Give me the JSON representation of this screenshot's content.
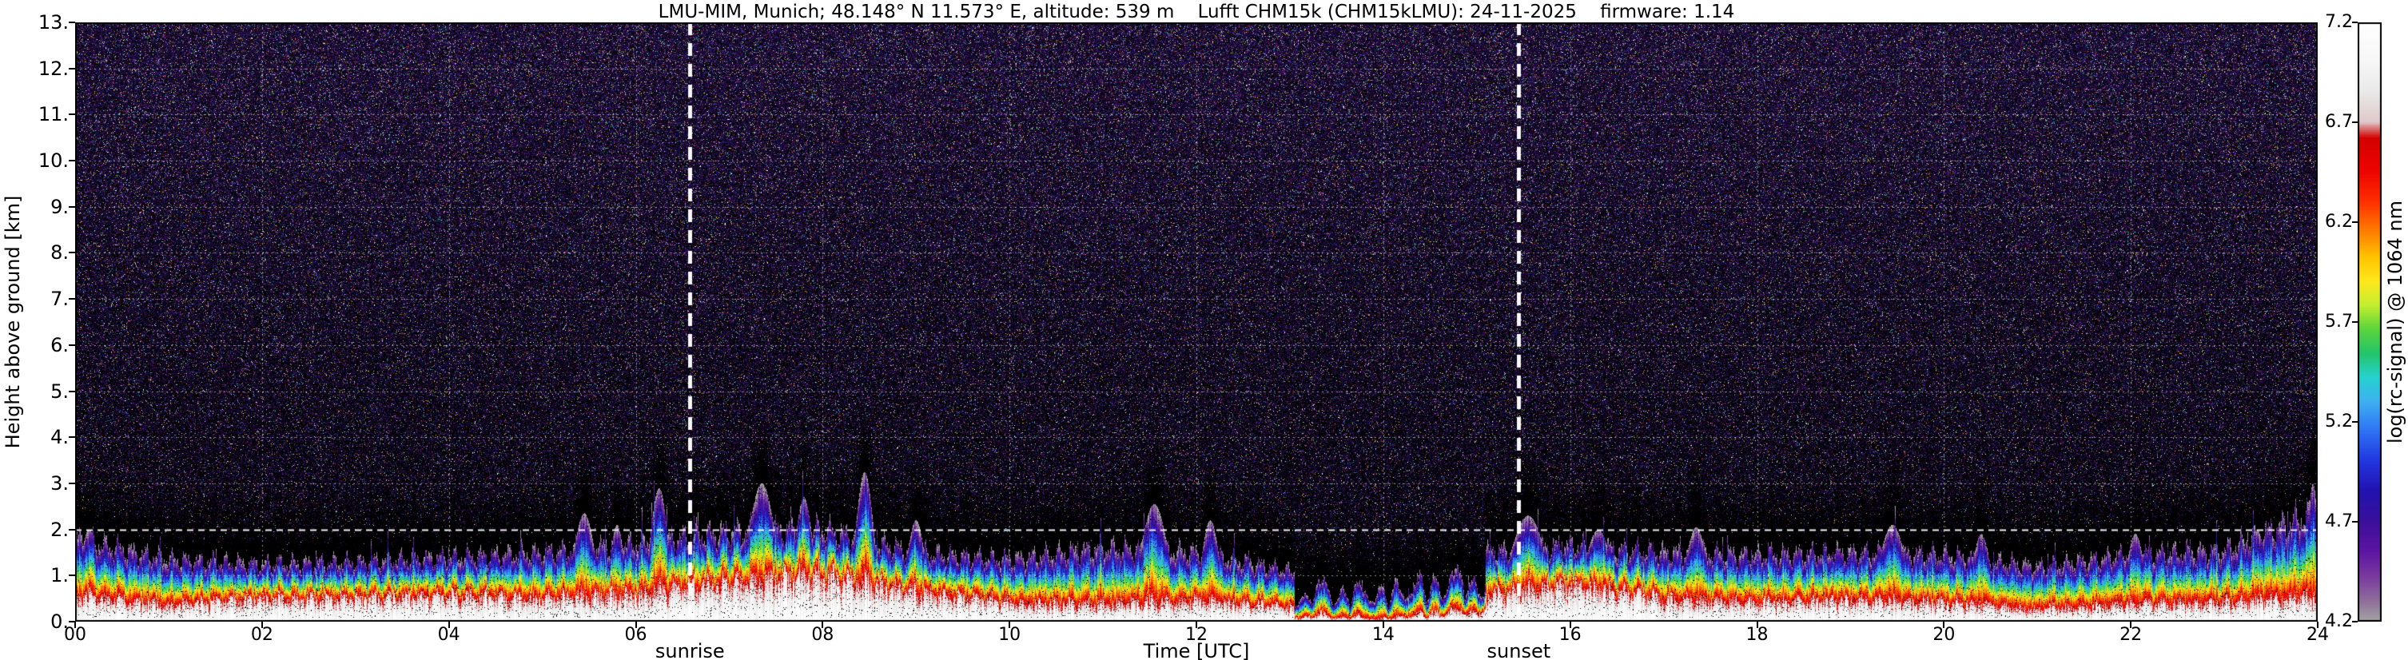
{
  "chart_data": {
    "type": "heatmap",
    "title": "LMU-MIM, Munich; 48.148° N 11.573° E, altitude: 539 m    Lufft CHM15k (CHM15kLMU): 24-11-2025    firmware: 1.14",
    "xlabel": "Time [UTC]",
    "ylabel": "Height above ground [km]",
    "colorbar_label": "log(rc-signal) @ 1064 nm",
    "x_range_hours": [
      0,
      24
    ],
    "y_range_km": [
      0,
      13
    ],
    "value_range": [
      4.2,
      7.2
    ],
    "x_ticks": [
      "00",
      "02",
      "04",
      "06",
      "08",
      "10",
      "12",
      "14",
      "16",
      "18",
      "20",
      "22",
      "24"
    ],
    "x_tick_hours": [
      0,
      2,
      4,
      6,
      8,
      10,
      12,
      14,
      16,
      18,
      20,
      22,
      24
    ],
    "y_ticks": [
      "0.",
      "1.",
      "2.",
      "3.",
      "4.",
      "5.",
      "6.",
      "7.",
      "8.",
      "9.",
      "10.",
      "11.",
      "12.",
      "13."
    ],
    "y_tick_km": [
      0,
      1,
      2,
      3,
      4,
      5,
      6,
      7,
      8,
      9,
      10,
      11,
      12,
      13
    ],
    "colorbar_ticks": [
      "7.2",
      "6.7",
      "6.2",
      "5.7",
      "5.2",
      "4.7",
      "4.2"
    ],
    "colorbar_tick_values": [
      7.2,
      6.7,
      6.2,
      5.7,
      5.2,
      4.7,
      4.2
    ],
    "gridlines": {
      "horizontal_km": [
        1,
        2,
        3,
        4,
        5,
        6,
        7,
        8,
        9,
        10,
        11,
        12
      ],
      "vertical_hours": [
        2,
        4,
        6,
        8,
        10,
        12,
        14,
        16,
        18,
        20,
        22
      ],
      "highlight_km": 2
    },
    "annotations": {
      "sunrise": {
        "label": "sunrise",
        "time_utc": 6.58
      },
      "sunset": {
        "label": "sunset",
        "time_utc": 15.45
      }
    },
    "colormap_stops": [
      [
        4.2,
        "#a2a2a2"
      ],
      [
        4.3,
        "#8e6e9a"
      ],
      [
        4.42,
        "#7a3a9e"
      ],
      [
        4.55,
        "#5c14a2"
      ],
      [
        4.7,
        "#3a0f9a"
      ],
      [
        4.85,
        "#2212b0"
      ],
      [
        5.0,
        "#2236e0"
      ],
      [
        5.15,
        "#2e72f5"
      ],
      [
        5.3,
        "#3fb0f0"
      ],
      [
        5.42,
        "#25d2cf"
      ],
      [
        5.54,
        "#23c46a"
      ],
      [
        5.66,
        "#5ad43c"
      ],
      [
        5.78,
        "#c2ee30"
      ],
      [
        5.9,
        "#ffe81e"
      ],
      [
        6.02,
        "#ffc400"
      ],
      [
        6.15,
        "#ff7e00"
      ],
      [
        6.3,
        "#ff3000"
      ],
      [
        6.45,
        "#ee0400"
      ],
      [
        6.62,
        "#d40000"
      ],
      [
        6.7,
        "#dfc9c9"
      ],
      [
        6.85,
        "#e9e9e9"
      ],
      [
        7.0,
        "#f6f6f6"
      ],
      [
        7.2,
        "#ffffff"
      ]
    ],
    "aerosol_layer": {
      "hours": [
        0,
        1,
        2,
        3,
        4,
        5,
        6,
        7,
        8,
        9,
        10,
        11,
        12,
        13,
        14,
        15,
        16,
        17,
        18,
        19,
        20,
        21,
        22,
        23,
        24
      ],
      "top_km": [
        1.8,
        1.35,
        1.25,
        1.3,
        1.4,
        1.5,
        1.7,
        1.95,
        2.0,
        1.5,
        1.35,
        1.6,
        1.5,
        1.1,
        0.95,
        1.5,
        1.65,
        1.5,
        1.45,
        1.5,
        1.45,
        1.2,
        1.45,
        1.55,
        2.4
      ],
      "white_core_top_km": [
        0.55,
        0.35,
        0.5,
        0.5,
        0.55,
        0.5,
        0.6,
        0.85,
        1.0,
        0.65,
        0.4,
        0.35,
        0.45,
        0.3,
        0.12,
        0.55,
        0.8,
        0.5,
        0.4,
        0.45,
        0.4,
        0.25,
        0.35,
        0.4,
        0.5
      ],
      "plumes": [
        {
          "t": 0.15,
          "top_km": 2.0,
          "w": 0.1
        },
        {
          "t": 5.45,
          "top_km": 2.35,
          "w": 0.12
        },
        {
          "t": 5.8,
          "top_km": 2.1,
          "w": 0.08
        },
        {
          "t": 6.25,
          "top_km": 2.9,
          "w": 0.1
        },
        {
          "t": 7.35,
          "top_km": 3.0,
          "w": 0.15
        },
        {
          "t": 7.8,
          "top_km": 2.7,
          "w": 0.1
        },
        {
          "t": 8.45,
          "top_km": 3.25,
          "w": 0.1
        },
        {
          "t": 9.0,
          "top_km": 2.2,
          "w": 0.1
        },
        {
          "t": 11.55,
          "top_km": 2.55,
          "w": 0.15
        },
        {
          "t": 12.15,
          "top_km": 2.2,
          "w": 0.1
        },
        {
          "t": 15.55,
          "top_km": 2.3,
          "w": 0.2
        },
        {
          "t": 16.3,
          "top_km": 2.0,
          "w": 0.15
        },
        {
          "t": 17.35,
          "top_km": 2.05,
          "w": 0.12
        },
        {
          "t": 19.45,
          "top_km": 2.1,
          "w": 0.15
        },
        {
          "t": 20.4,
          "top_km": 1.9,
          "w": 0.1
        },
        {
          "t": 22.05,
          "top_km": 1.9,
          "w": 0.1
        },
        {
          "t": 23.35,
          "top_km": 2.0,
          "w": 0.1
        },
        {
          "t": 23.95,
          "top_km": 3.0,
          "w": 0.06
        }
      ],
      "dropout_interval_hours": [
        13.05,
        15.1
      ]
    },
    "noise": {
      "background": "#000000",
      "palette": [
        [
          "#160828",
          24
        ],
        [
          "#220d3e",
          20
        ],
        [
          "#0f051c",
          15
        ],
        [
          "#2f1254",
          10
        ],
        [
          "#1b1168",
          7
        ],
        [
          "#2a2a96",
          5
        ],
        [
          "#54187e",
          5
        ],
        [
          "#8a2aa0",
          2.5
        ],
        [
          "#c8c8da",
          2.5
        ],
        [
          "#eeeef6",
          1.2
        ],
        [
          "#2e9e50",
          1.6
        ],
        [
          "#b8a822",
          1.3
        ],
        [
          "#a62828",
          1.6
        ],
        [
          "#28a0b4",
          1.8
        ],
        [
          "#ff8820",
          0.7
        ]
      ],
      "density": {
        "base": 0.3,
        "height_gain": 0.55,
        "clear_gap_km": 0.25,
        "ramp_km": 1.3
      }
    }
  }
}
